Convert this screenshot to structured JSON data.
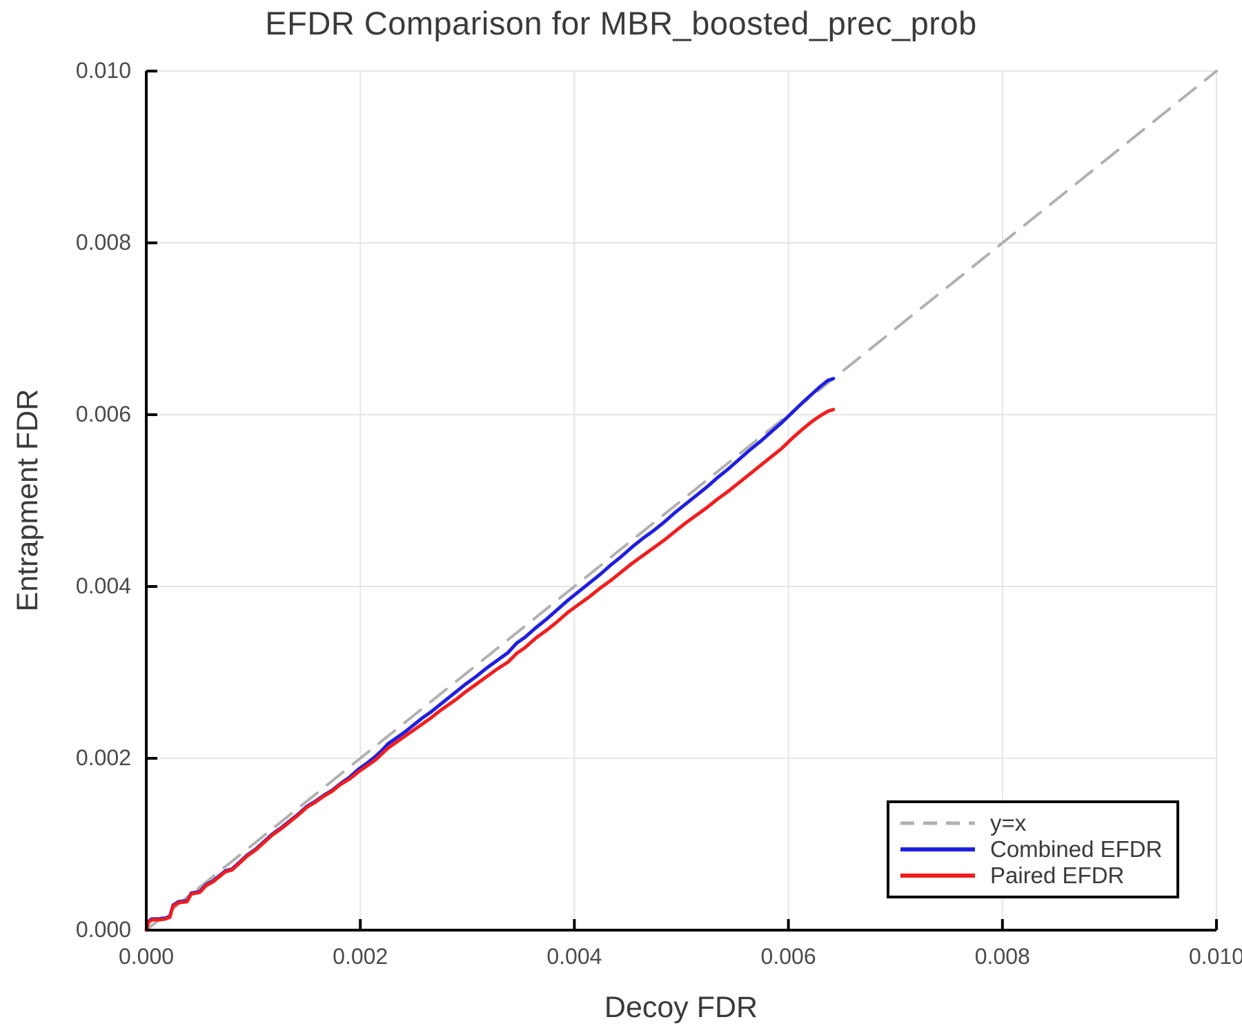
{
  "chart_data": {
    "type": "line",
    "title": "EFDR Comparison for MBR_boosted_prec_prob",
    "xlabel": "Decoy FDR",
    "ylabel": "Entrapment FDR",
    "xlim": [
      0.0,
      0.01
    ],
    "ylim": [
      0.0,
      0.01
    ],
    "grid": true,
    "xticks": {
      "values": [
        0.0,
        0.002,
        0.004,
        0.006,
        0.008,
        0.01
      ],
      "labels": [
        "0.000",
        "0.002",
        "0.004",
        "0.006",
        "0.008",
        "0.010"
      ]
    },
    "yticks": {
      "values": [
        0.0,
        0.002,
        0.004,
        0.006,
        0.008,
        0.01
      ],
      "labels": [
        "0.000",
        "0.002",
        "0.004",
        "0.006",
        "0.008",
        "0.010"
      ]
    },
    "colors": {
      "grid": "#e5e5e5",
      "spine": "#000000",
      "identity": "#b0b0b0",
      "combined": "#1f1fe0",
      "paired": "#f01e1e",
      "title_text": "#3a3a3a",
      "tick_text": "#4a4a4a"
    },
    "legend": {
      "position": "lower-right",
      "border_color": "#000000"
    },
    "series": [
      {
        "name": "y=x",
        "color": "#b0b0b0",
        "style": "dashed",
        "width": 4,
        "points": [
          [
            0.0,
            0.0
          ],
          [
            0.01,
            0.01
          ]
        ]
      },
      {
        "name": "Combined EFDR",
        "color": "#1f1fe0",
        "style": "solid",
        "width": 5,
        "points": [
          [
            0,
            0
          ],
          [
            2e-05,
            0.0001
          ],
          [
            5e-05,
            0.00013
          ],
          [
            0.00012,
            0.00013
          ],
          [
            0.00018,
            0.00014
          ],
          [
            0.00022,
            0.00016
          ],
          [
            0.00025,
            0.00029
          ],
          [
            0.0003,
            0.00033
          ],
          [
            0.00038,
            0.00034
          ],
          [
            0.00042,
            0.00043
          ],
          [
            0.0005,
            0.00045
          ],
          [
            0.00056,
            0.00053
          ],
          [
            0.00062,
            0.00057
          ],
          [
            0.00068,
            0.00063
          ],
          [
            0.00074,
            0.00069
          ],
          [
            0.0008,
            0.00071
          ],
          [
            0.00088,
            0.0008
          ],
          [
            0.00094,
            0.00087
          ],
          [
            0.00102,
            0.00094
          ],
          [
            0.0011,
            0.00103
          ],
          [
            0.00118,
            0.00112
          ],
          [
            0.00126,
            0.00119
          ],
          [
            0.00134,
            0.00127
          ],
          [
            0.00142,
            0.00135
          ],
          [
            0.0015,
            0.00144
          ],
          [
            0.00158,
            0.0015
          ],
          [
            0.00166,
            0.00157
          ],
          [
            0.00174,
            0.00163
          ],
          [
            0.00182,
            0.00171
          ],
          [
            0.0019,
            0.00178
          ],
          [
            0.00198,
            0.00187
          ],
          [
            0.00206,
            0.00194
          ],
          [
            0.00214,
            0.00202
          ],
          [
            0.0022,
            0.00209
          ],
          [
            0.00226,
            0.00217
          ],
          [
            0.00234,
            0.00224
          ],
          [
            0.00242,
            0.00231
          ],
          [
            0.0025,
            0.00239
          ],
          [
            0.00258,
            0.00247
          ],
          [
            0.00266,
            0.00254
          ],
          [
            0.00274,
            0.00262
          ],
          [
            0.00282,
            0.0027
          ],
          [
            0.0029,
            0.00278
          ],
          [
            0.00298,
            0.00286
          ],
          [
            0.00308,
            0.00295
          ],
          [
            0.00318,
            0.00305
          ],
          [
            0.00328,
            0.00314
          ],
          [
            0.00338,
            0.00323
          ],
          [
            0.00346,
            0.00334
          ],
          [
            0.00354,
            0.00341
          ],
          [
            0.00364,
            0.00352
          ],
          [
            0.00374,
            0.00362
          ],
          [
            0.00384,
            0.00373
          ],
          [
            0.00394,
            0.00384
          ],
          [
            0.00404,
            0.00394
          ],
          [
            0.00414,
            0.00404
          ],
          [
            0.00424,
            0.00414
          ],
          [
            0.00434,
            0.00425
          ],
          [
            0.00444,
            0.00435
          ],
          [
            0.00454,
            0.00446
          ],
          [
            0.00464,
            0.00456
          ],
          [
            0.00474,
            0.00465
          ],
          [
            0.00484,
            0.00475
          ],
          [
            0.00494,
            0.00486
          ],
          [
            0.00504,
            0.00496
          ],
          [
            0.00514,
            0.00506
          ],
          [
            0.00524,
            0.00516
          ],
          [
            0.00534,
            0.00527
          ],
          [
            0.00544,
            0.00537
          ],
          [
            0.00554,
            0.00548
          ],
          [
            0.00564,
            0.00559
          ],
          [
            0.00574,
            0.00569
          ],
          [
            0.00584,
            0.0058
          ],
          [
            0.00594,
            0.00591
          ],
          [
            0.00604,
            0.00603
          ],
          [
            0.00614,
            0.00615
          ],
          [
            0.00622,
            0.00624
          ],
          [
            0.0063,
            0.00633
          ],
          [
            0.00637,
            0.0064
          ],
          [
            0.00642,
            0.00642
          ]
        ]
      },
      {
        "name": "Paired EFDR",
        "color": "#f01e1e",
        "style": "solid",
        "width": 5,
        "points": [
          [
            0,
            0
          ],
          [
            2e-05,
            9e-05
          ],
          [
            5e-05,
            0.00012
          ],
          [
            0.00012,
            0.00012
          ],
          [
            0.00018,
            0.00013
          ],
          [
            0.00022,
            0.00015
          ],
          [
            0.00025,
            0.00028
          ],
          [
            0.0003,
            0.00032
          ],
          [
            0.00038,
            0.00033
          ],
          [
            0.00042,
            0.00042
          ],
          [
            0.0005,
            0.00044
          ],
          [
            0.00056,
            0.00052
          ],
          [
            0.00062,
            0.00056
          ],
          [
            0.00068,
            0.00062
          ],
          [
            0.00074,
            0.00068
          ],
          [
            0.0008,
            0.0007
          ],
          [
            0.00088,
            0.00079
          ],
          [
            0.00094,
            0.00086
          ],
          [
            0.00102,
            0.00093
          ],
          [
            0.0011,
            0.00102
          ],
          [
            0.00118,
            0.00111
          ],
          [
            0.00126,
            0.00118
          ],
          [
            0.00134,
            0.00126
          ],
          [
            0.00142,
            0.00134
          ],
          [
            0.0015,
            0.00143
          ],
          [
            0.00158,
            0.00149
          ],
          [
            0.00166,
            0.00156
          ],
          [
            0.00174,
            0.00162
          ],
          [
            0.00182,
            0.0017
          ],
          [
            0.0019,
            0.00176
          ],
          [
            0.00198,
            0.00184
          ],
          [
            0.00206,
            0.00191
          ],
          [
            0.00214,
            0.00198
          ],
          [
            0.0022,
            0.00205
          ],
          [
            0.00226,
            0.00212
          ],
          [
            0.00234,
            0.00219
          ],
          [
            0.00242,
            0.00226
          ],
          [
            0.0025,
            0.00233
          ],
          [
            0.00258,
            0.0024
          ],
          [
            0.00266,
            0.00247
          ],
          [
            0.00274,
            0.00255
          ],
          [
            0.00282,
            0.00262
          ],
          [
            0.0029,
            0.00269
          ],
          [
            0.00298,
            0.00277
          ],
          [
            0.00308,
            0.00286
          ],
          [
            0.00318,
            0.00295
          ],
          [
            0.00328,
            0.00304
          ],
          [
            0.00338,
            0.00312
          ],
          [
            0.00346,
            0.00322
          ],
          [
            0.00354,
            0.00329
          ],
          [
            0.00364,
            0.0034
          ],
          [
            0.00374,
            0.00349
          ],
          [
            0.00384,
            0.00359
          ],
          [
            0.00394,
            0.0037
          ],
          [
            0.00404,
            0.00379
          ],
          [
            0.00414,
            0.00388
          ],
          [
            0.00424,
            0.00398
          ],
          [
            0.00434,
            0.00407
          ],
          [
            0.00444,
            0.00417
          ],
          [
            0.00454,
            0.00427
          ],
          [
            0.00464,
            0.00436
          ],
          [
            0.00474,
            0.00445
          ],
          [
            0.00484,
            0.00454
          ],
          [
            0.00494,
            0.00464
          ],
          [
            0.00504,
            0.00474
          ],
          [
            0.00514,
            0.00483
          ],
          [
            0.00524,
            0.00492
          ],
          [
            0.00534,
            0.00502
          ],
          [
            0.00544,
            0.00511
          ],
          [
            0.00554,
            0.00521
          ],
          [
            0.00564,
            0.00531
          ],
          [
            0.00574,
            0.00541
          ],
          [
            0.00584,
            0.00551
          ],
          [
            0.00594,
            0.00561
          ],
          [
            0.00604,
            0.00573
          ],
          [
            0.00614,
            0.00584
          ],
          [
            0.00622,
            0.00592
          ],
          [
            0.0063,
            0.00599
          ],
          [
            0.00637,
            0.00604
          ],
          [
            0.00642,
            0.00606
          ]
        ]
      }
    ]
  }
}
